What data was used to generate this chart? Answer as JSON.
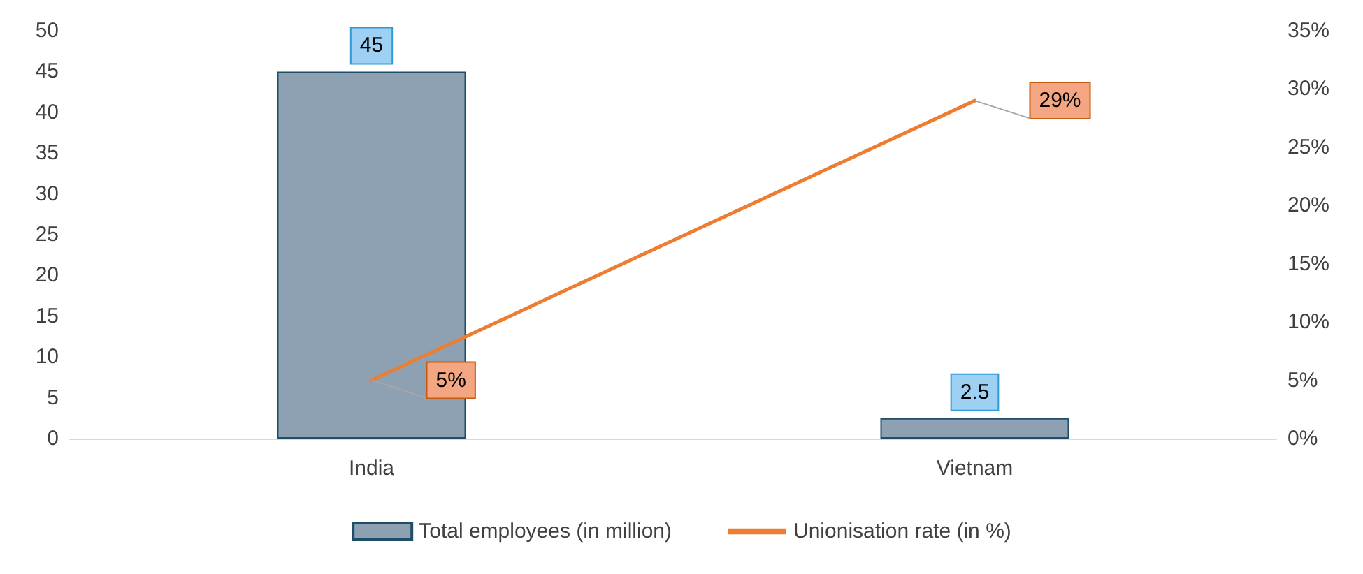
{
  "chart_data": {
    "type": "bar",
    "categories": [
      "India",
      "Vietnam"
    ],
    "series": [
      {
        "name": "Total employees (in million)",
        "color": "#8da1b3",
        "values": [
          45,
          2.5
        ],
        "value_labels": [
          "45",
          "2.5"
        ]
      },
      {
        "name": "Unionisation rate (in %)",
        "type": "line",
        "axis": "y2",
        "color": "#ed7d31",
        "values": [
          5,
          29
        ],
        "value_labels": [
          "5%",
          "29%"
        ]
      }
    ],
    "ylim": [
      0,
      50
    ],
    "yticks": [
      0,
      5,
      10,
      15,
      20,
      25,
      30,
      35,
      40,
      45,
      50
    ],
    "y2lim": [
      0,
      35
    ],
    "y2ticks": [
      {
        "value": 0,
        "label": "0%"
      },
      {
        "value": 5,
        "label": "5%"
      },
      {
        "value": 10,
        "label": "10%"
      },
      {
        "value": 15,
        "label": "15%"
      },
      {
        "value": 20,
        "label": "20%"
      },
      {
        "value": 25,
        "label": "25%"
      },
      {
        "value": 30,
        "label": "30%"
      },
      {
        "value": 35,
        "label": "35%"
      }
    ],
    "grid": false,
    "legend": "bottom",
    "marker": "none",
    "line_style": "solid"
  }
}
